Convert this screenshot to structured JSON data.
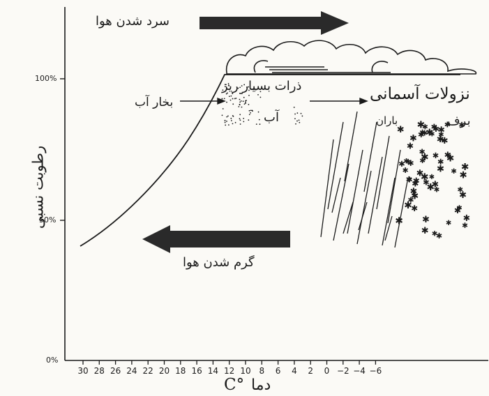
{
  "y_axis": {
    "label": "رطوبت نسبی",
    "ticks": [
      "100%",
      "50%",
      "0%"
    ]
  },
  "x_axis": {
    "label_unit": "C°",
    "label_text": "دما",
    "ticks": [
      "30",
      "28",
      "26",
      "24",
      "22",
      "20",
      "18",
      "16",
      "14",
      "12",
      "10",
      "8",
      "6",
      "4",
      "2",
      "0",
      "−2",
      "−4",
      "−6"
    ]
  },
  "arrows": {
    "cooling": "سرد شدن هوا",
    "warming": "گرم شدن هوا"
  },
  "labels": {
    "water_vapor": "بخار آب",
    "fine_particles": "ذرات بسیار ریز",
    "water": "آب",
    "precipitation": "نزولات آسمانی",
    "rain": "باران",
    "snow": "برف"
  },
  "colors": {
    "ink": "#1a1a1a",
    "arrow_fill": "#2a2a2a",
    "paper": "#fbfaf6"
  }
}
